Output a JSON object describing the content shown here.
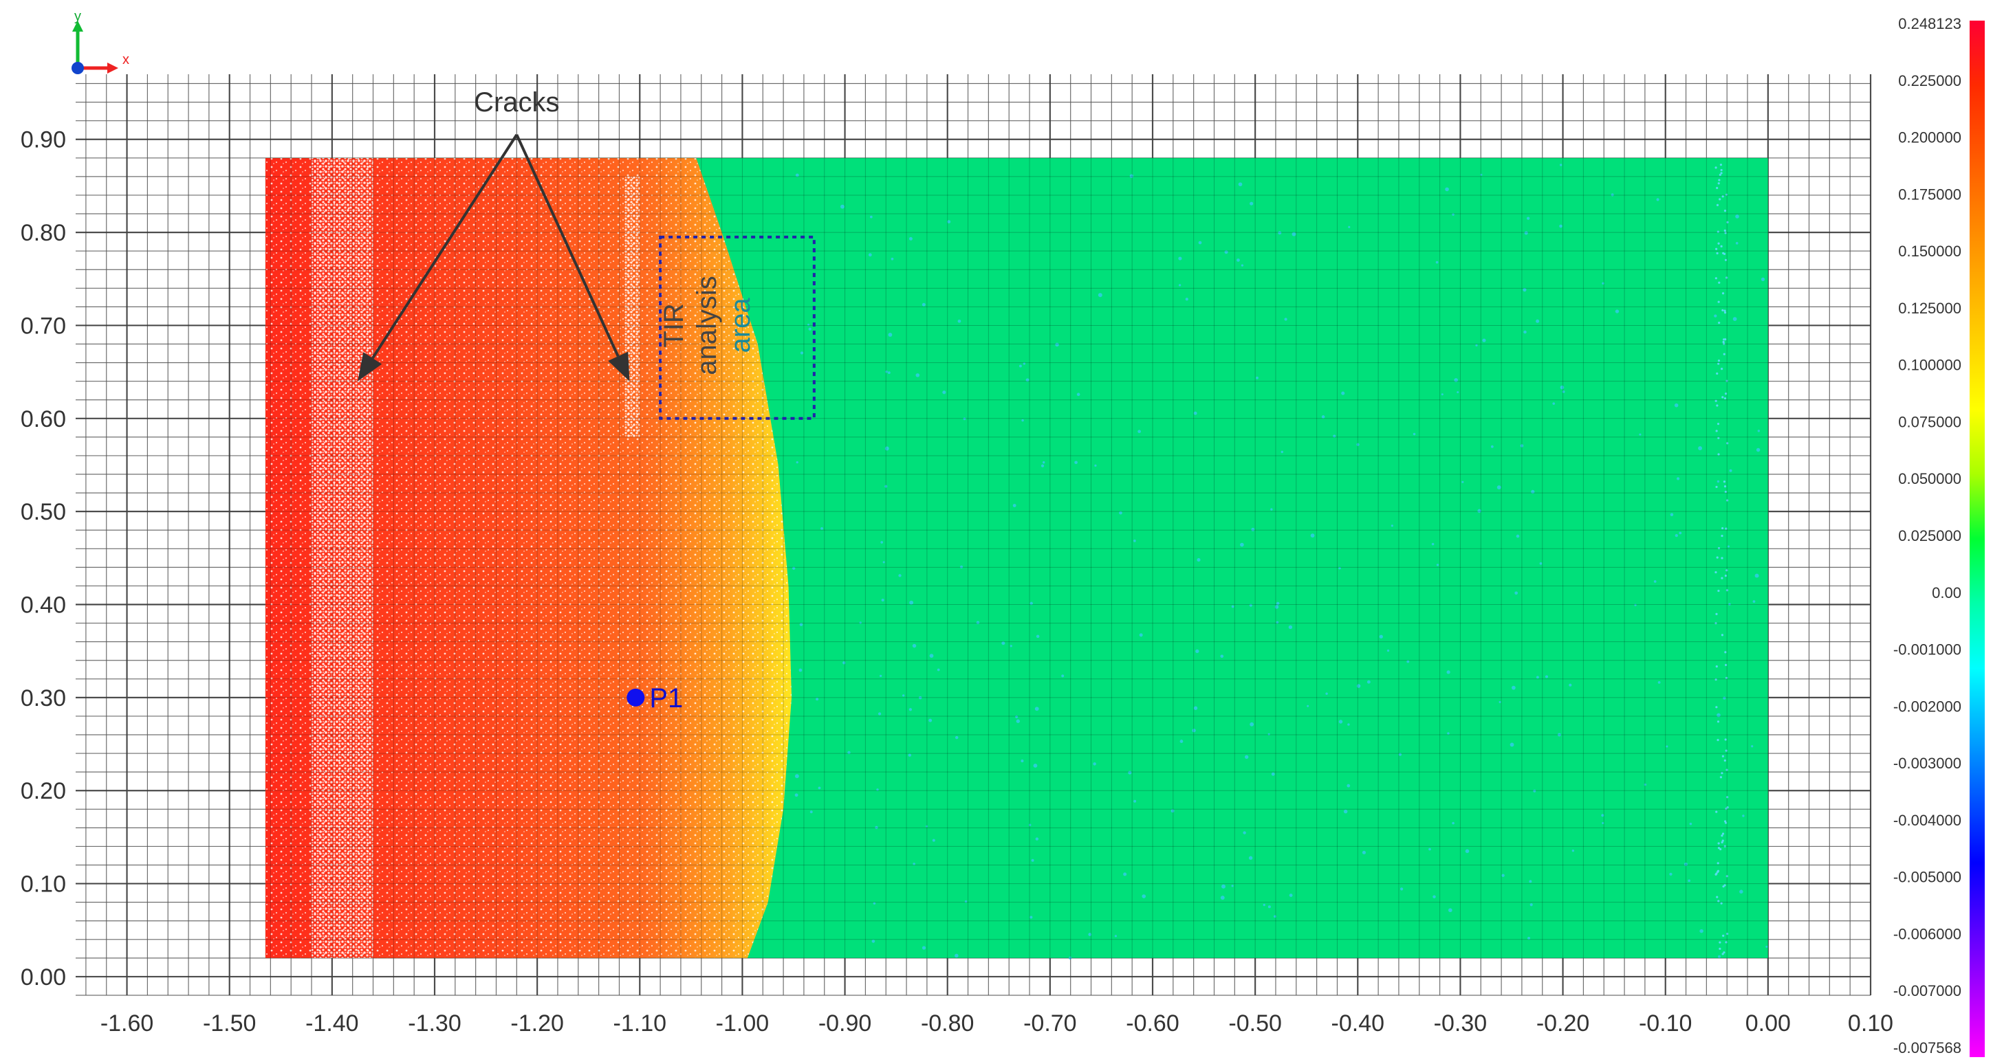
{
  "chart_data": {
    "type": "heatmap",
    "title": "",
    "xlabel": "",
    "ylabel": "",
    "xlim": [
      -1.65,
      0.1
    ],
    "ylim": [
      -0.02,
      0.97
    ],
    "grid": true,
    "x_ticks": [
      "-1.60",
      "-1.50",
      "-1.40",
      "-1.30",
      "-1.20",
      "-1.10",
      "-1.00",
      "-0.90",
      "-0.80",
      "-0.70",
      "-0.60",
      "-0.50",
      "-0.40",
      "-0.30",
      "-0.20",
      "-0.10",
      "0.00",
      "0.10"
    ],
    "x_tick_values": [
      -1.6,
      -1.5,
      -1.4,
      -1.3,
      -1.2,
      -1.1,
      -1.0,
      -0.9,
      -0.8,
      -0.7,
      -0.6,
      -0.5,
      -0.4,
      -0.3,
      -0.2,
      -0.1,
      0.0,
      0.1
    ],
    "y_ticks": [
      "0.00",
      "0.10",
      "0.20",
      "0.30",
      "0.40",
      "0.50",
      "0.60",
      "0.70",
      "0.80",
      "0.90"
    ],
    "y_tick_values": [
      0.0,
      0.1,
      0.2,
      0.3,
      0.4,
      0.5,
      0.6,
      0.7,
      0.8,
      0.9
    ],
    "region": {
      "x": [
        -1.465,
        0.0
      ],
      "y": [
        0.02,
        0.88
      ]
    },
    "colors": {
      "red": "#ff2a1a",
      "orange": "#ff6a1f",
      "yellow": "#ffe81f",
      "green": "#00e07a",
      "white": "#ffffff"
    },
    "colorbar": {
      "labels": [
        "0.248123",
        "0.225000",
        "0.200000",
        "0.175000",
        "0.150000",
        "0.125000",
        "0.100000",
        "0.075000",
        "0.050000",
        "0.025000",
        "0.00",
        "-0.001000",
        "-0.002000",
        "-0.003000",
        "-0.004000",
        "-0.005000",
        "-0.006000",
        "-0.007000",
        "-0.007568"
      ],
      "stops": [
        "#ff0033",
        "#ff2a00",
        "#ff5500",
        "#ff8000",
        "#ffaa00",
        "#ffd400",
        "#ffff00",
        "#aaff00",
        "#00ff33",
        "#00ffaa",
        "#00ffff",
        "#00aaff",
        "#0055ff",
        "#0000ff",
        "#5500ff",
        "#aa00ff",
        "#ff00ff"
      ]
    },
    "annotations": {
      "cracks": {
        "label": "Cracks",
        "x": -1.22,
        "y": 0.93,
        "targets": [
          {
            "x": -1.375,
            "y": 0.64
          },
          {
            "x": -1.11,
            "y": 0.64
          }
        ]
      },
      "tir_box": {
        "lines": [
          "TIR",
          "analysis",
          "area"
        ],
        "x": [
          -1.08,
          -0.93
        ],
        "y": [
          0.6,
          0.795
        ]
      },
      "point": {
        "label": "P1",
        "x": -1.104,
        "y": 0.3
      }
    },
    "axis_icon": {
      "x_label": "x",
      "y_label": "y"
    }
  }
}
